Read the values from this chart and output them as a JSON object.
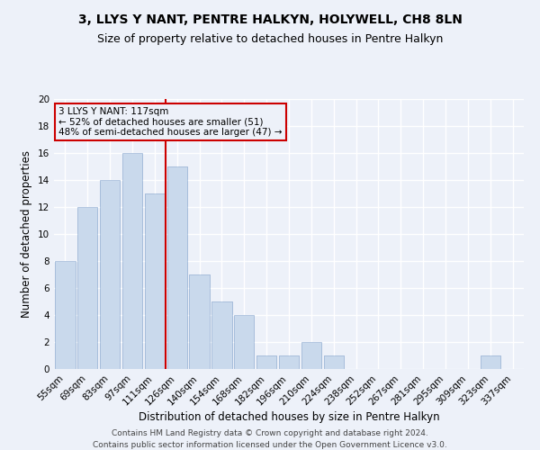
{
  "title": "3, LLYS Y NANT, PENTRE HALKYN, HOLYWELL, CH8 8LN",
  "subtitle": "Size of property relative to detached houses in Pentre Halkyn",
  "xlabel": "Distribution of detached houses by size in Pentre Halkyn",
  "ylabel": "Number of detached properties",
  "categories": [
    "55sqm",
    "69sqm",
    "83sqm",
    "97sqm",
    "111sqm",
    "126sqm",
    "140sqm",
    "154sqm",
    "168sqm",
    "182sqm",
    "196sqm",
    "210sqm",
    "224sqm",
    "238sqm",
    "252sqm",
    "267sqm",
    "281sqm",
    "295sqm",
    "309sqm",
    "323sqm",
    "337sqm"
  ],
  "values": [
    8,
    12,
    14,
    16,
    13,
    15,
    7,
    5,
    4,
    1,
    1,
    2,
    1,
    0,
    0,
    0,
    0,
    0,
    0,
    1,
    0
  ],
  "bar_color": "#c9d9ec",
  "bar_edgecolor": "#a0b8d8",
  "marker_label": "3 LLYS Y NANT: 117sqm",
  "annotation_line1": "← 52% of detached houses are smaller (51)",
  "annotation_line2": "48% of semi-detached houses are larger (47) →",
  "vline_color": "#cc0000",
  "vline_x_index": 4.5,
  "annotation_box_edgecolor": "#cc0000",
  "ylim": [
    0,
    20
  ],
  "yticks": [
    0,
    2,
    4,
    6,
    8,
    10,
    12,
    14,
    16,
    18,
    20
  ],
  "footnote1": "Contains HM Land Registry data © Crown copyright and database right 2024.",
  "footnote2": "Contains public sector information licensed under the Open Government Licence v3.0.",
  "background_color": "#edf1f9",
  "grid_color": "#ffffff",
  "title_fontsize": 10,
  "subtitle_fontsize": 9,
  "axis_label_fontsize": 8.5,
  "tick_fontsize": 7.5,
  "footnote_fontsize": 6.5
}
